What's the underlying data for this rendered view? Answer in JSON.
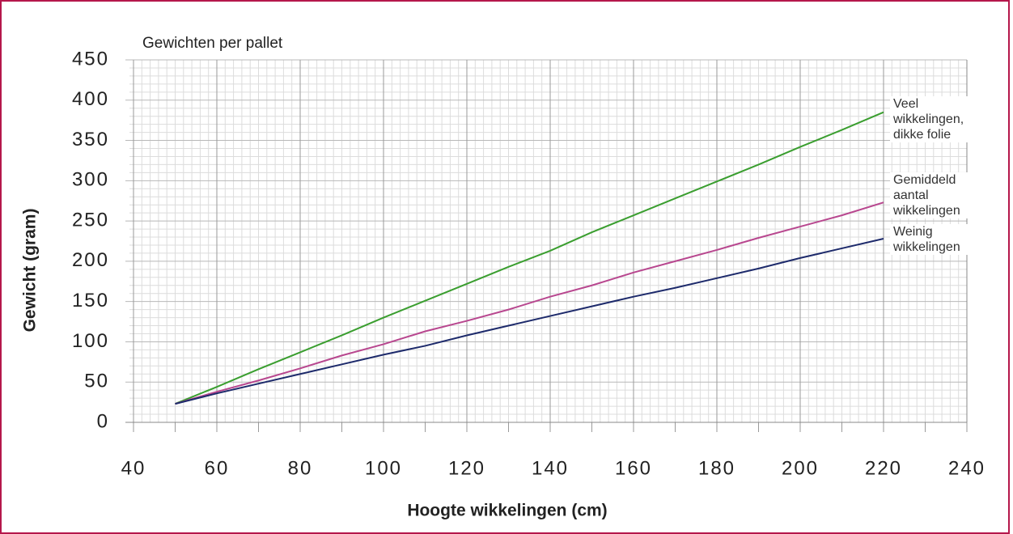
{
  "chart_data": {
    "type": "line",
    "title": "Gewichten per pallet",
    "x_label": "Hoogte wikkelingen (cm)",
    "y_label": "Gewicht (gram)",
    "x": [
      50,
      60,
      70,
      80,
      90,
      100,
      110,
      120,
      130,
      140,
      150,
      160,
      170,
      180,
      190,
      200,
      210,
      220
    ],
    "series": [
      {
        "name": "Veel wikkelingen, dikke folie",
        "color": "#3a9e2f",
        "values": [
          23,
          44,
          66,
          87,
          108,
          130,
          151,
          172,
          193,
          213,
          236,
          257,
          278,
          299,
          320,
          342,
          363,
          385
        ]
      },
      {
        "name": "Gemiddeld aantal wikkelingen",
        "color": "#b8478f",
        "values": [
          23,
          38,
          52,
          67,
          83,
          97,
          113,
          126,
          140,
          156,
          170,
          186,
          200,
          214,
          229,
          243,
          257,
          273
        ]
      },
      {
        "name": "Weinig wikkelingen",
        "color": "#1d2a6b",
        "values": [
          23,
          36,
          48,
          60,
          72,
          84,
          95,
          108,
          120,
          132,
          144,
          156,
          167,
          179,
          191,
          204,
          216,
          228
        ]
      }
    ],
    "xlim": [
      40,
      240
    ],
    "xticks": [
      40,
      60,
      80,
      100,
      120,
      140,
      160,
      180,
      200,
      220,
      240
    ],
    "ylim": [
      0,
      450
    ],
    "yticks": [
      0,
      50,
      100,
      150,
      200,
      250,
      300,
      350,
      400,
      450
    ],
    "grid": true
  }
}
